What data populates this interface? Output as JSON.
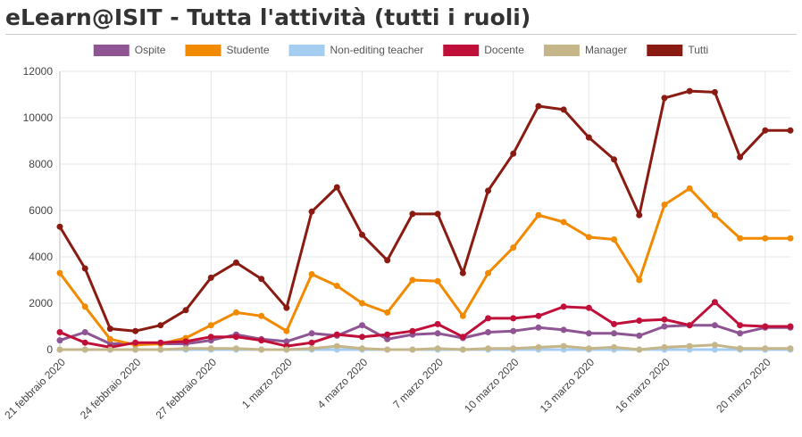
{
  "page": {
    "title": "eLearn@ISIT - Tutta l'attività (tutti i ruoli)"
  },
  "chart_data": {
    "type": "line",
    "title": "",
    "xlabel": "",
    "ylabel": "",
    "ylim": [
      0,
      12000
    ],
    "yticks": [
      0,
      2000,
      4000,
      6000,
      8000,
      10000,
      12000
    ],
    "grid": true,
    "legend_position": "top-center",
    "x": [
      "21 febbraio 2020",
      "22 febbraio 2020",
      "23 febbraio 2020",
      "24 febbraio 2020",
      "25 febbraio 2020",
      "26 febbraio 2020",
      "27 febbraio 2020",
      "28 febbraio 2020",
      "29 febbraio 2020",
      "1 marzo 2020",
      "2 marzo 2020",
      "3 marzo 2020",
      "4 marzo 2020",
      "5 marzo 2020",
      "6 marzo 2020",
      "7 marzo 2020",
      "8 marzo 2020",
      "9 marzo 2020",
      "10 marzo 2020",
      "11 marzo 2020",
      "12 marzo 2020",
      "13 marzo 2020",
      "14 marzo 2020",
      "15 marzo 2020",
      "16 marzo 2020",
      "17 marzo 2020",
      "18 marzo 2020",
      "19 marzo 2020",
      "20 marzo 2020",
      "21 marzo 2020"
    ],
    "x_tick_labels": [
      {
        "index": 0,
        "label": "21 febbraio 2020"
      },
      {
        "index": 3,
        "label": "24 febbraio 2020"
      },
      {
        "index": 6,
        "label": "27 febbraio 2020"
      },
      {
        "index": 9,
        "label": "1 marzo 2020"
      },
      {
        "index": 12,
        "label": "4 marzo 2020"
      },
      {
        "index": 15,
        "label": "7 marzo 2020"
      },
      {
        "index": 18,
        "label": "10 marzo 2020"
      },
      {
        "index": 21,
        "label": "13 marzo 2020"
      },
      {
        "index": 24,
        "label": "16 marzo 2020"
      },
      {
        "index": 28,
        "label": "20 marzo 2020"
      }
    ],
    "series": [
      {
        "name": "Ospite",
        "color": "#8e5493",
        "values": [
          400,
          750,
          250,
          250,
          250,
          250,
          400,
          650,
          450,
          350,
          700,
          600,
          1050,
          450,
          650,
          700,
          500,
          750,
          800,
          950,
          850,
          700,
          700,
          600,
          1000,
          1050,
          1050,
          700,
          950,
          950
        ]
      },
      {
        "name": "Studente",
        "color": "#f28a00",
        "values": [
          3300,
          1850,
          450,
          200,
          250,
          500,
          1050,
          1600,
          1450,
          800,
          3250,
          2750,
          2000,
          1600,
          3000,
          2950,
          1450,
          3300,
          4400,
          5800,
          5500,
          4850,
          4750,
          3000,
          6250,
          6950,
          5800,
          4800,
          4800,
          4800
        ]
      },
      {
        "name": "Non-editing teacher",
        "color": "#a5cdf2",
        "values": [
          0,
          0,
          0,
          0,
          0,
          0,
          0,
          0,
          0,
          0,
          0,
          0,
          0,
          0,
          0,
          0,
          0,
          0,
          0,
          0,
          0,
          0,
          0,
          0,
          0,
          0,
          0,
          0,
          0,
          0
        ]
      },
      {
        "name": "Docente",
        "color": "#c0103a",
        "values": [
          750,
          300,
          100,
          300,
          300,
          350,
          550,
          550,
          400,
          150,
          300,
          650,
          550,
          650,
          800,
          1100,
          550,
          1350,
          1350,
          1450,
          1850,
          1800,
          1100,
          1250,
          1300,
          1050,
          2050,
          1050,
          1000,
          1000
        ]
      },
      {
        "name": "Manager",
        "color": "#c4b689",
        "values": [
          0,
          0,
          0,
          0,
          0,
          50,
          50,
          50,
          0,
          0,
          50,
          150,
          50,
          0,
          0,
          50,
          0,
          50,
          50,
          100,
          150,
          50,
          100,
          0,
          100,
          150,
          200,
          50,
          50,
          50
        ]
      },
      {
        "name": "Tutti",
        "color": "#8a1b12",
        "values": [
          5300,
          3500,
          900,
          800,
          1050,
          1700,
          3100,
          3750,
          3050,
          1800,
          5950,
          7000,
          4950,
          3850,
          5850,
          5850,
          3300,
          6850,
          8450,
          10500,
          10350,
          9150,
          8200,
          5800,
          10850,
          11150,
          11100,
          8300,
          9450,
          9450
        ]
      }
    ]
  }
}
